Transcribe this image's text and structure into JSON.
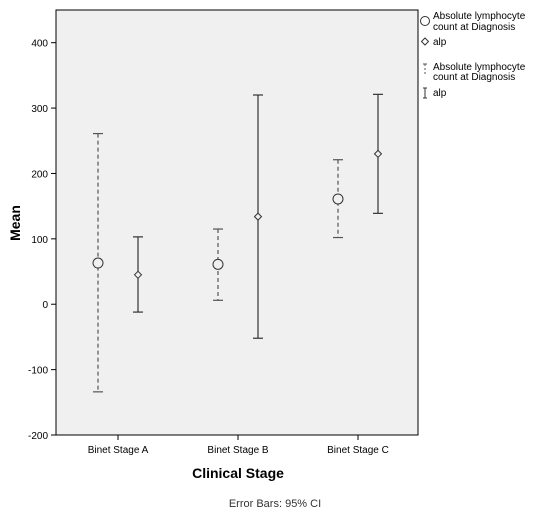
{
  "chart_data": {
    "type": "errorbar",
    "xlabel": "Clinical Stage",
    "ylabel": "Mean",
    "ylim": [
      -200,
      450
    ],
    "yticks": [
      -200,
      -100,
      0,
      100,
      200,
      300,
      400
    ],
    "categories": [
      "Binet Stage A",
      "Binet Stage B",
      "Binet Stage C"
    ],
    "series": [
      {
        "name": "Absolute lymphocyte count at Diagnosis",
        "marker": "circle",
        "line_style": "dashed",
        "means": [
          63,
          61,
          161
        ],
        "lower": [
          -134,
          6,
          102
        ],
        "upper": [
          261,
          115,
          221
        ]
      },
      {
        "name": "alp",
        "marker": "diamond",
        "line_style": "solid",
        "means": [
          45,
          134,
          230
        ],
        "lower": [
          -12,
          -52,
          139
        ],
        "upper": [
          103,
          320,
          321
        ]
      }
    ],
    "footnote": "Error Bars: 95% CI",
    "legend_position": "right",
    "grid": false,
    "background_color": "#f0f0f0"
  }
}
